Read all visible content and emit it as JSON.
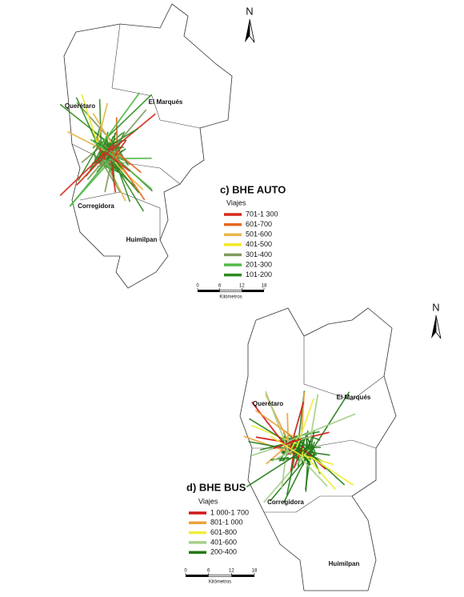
{
  "maps": [
    {
      "title": "c) BHE AUTO",
      "legend_title": "Viajes",
      "legend": [
        {
          "label": "701-1 300",
          "color": "#d62a1e"
        },
        {
          "label": "601-700",
          "color": "#e8661c"
        },
        {
          "label": "501-600",
          "color": "#e8b64a"
        },
        {
          "label": "401-500",
          "color": "#f0ea26"
        },
        {
          "label": "301-400",
          "color": "#7f9a5e"
        },
        {
          "label": "201-300",
          "color": "#52b848"
        },
        {
          "label": "101-200",
          "color": "#2e8a1c"
        }
      ],
      "scale": {
        "ticks": [
          0,
          6,
          12,
          18
        ],
        "unit": "Kilómetros"
      },
      "north": "N",
      "places": [
        "Querétaro",
        "El Marqués",
        "Corregidora",
        "Huimilpan"
      ]
    },
    {
      "title": "d) BHE BUS",
      "legend_title": "Viajes",
      "legend": [
        {
          "label": "1 000-1 700",
          "color": "#d01818"
        },
        {
          "label": "801-1 000",
          "color": "#eca23a"
        },
        {
          "label": "601-800",
          "color": "#eeee3a"
        },
        {
          "label": "401-600",
          "color": "#a5cf8a"
        },
        {
          "label": "200-400",
          "color": "#1f7a14"
        }
      ],
      "scale": {
        "ticks": [
          0,
          6,
          12,
          18
        ],
        "unit": "Kilómetros"
      },
      "north": "N",
      "places": [
        "Querétaro",
        "El Marqués",
        "Corregidora",
        "Huimilpan"
      ]
    }
  ]
}
